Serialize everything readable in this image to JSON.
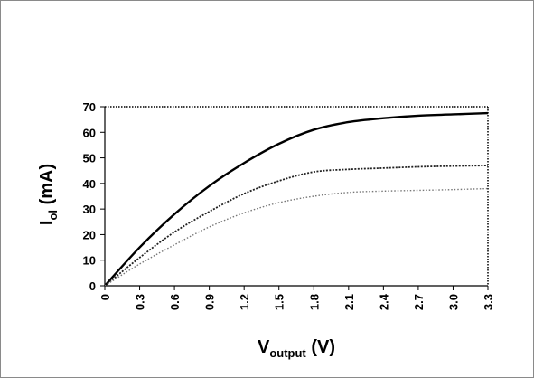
{
  "chart_data": {
    "type": "line",
    "xlabel": {
      "main": "V",
      "sub": "output",
      "unit": " (V)"
    },
    "ylabel": {
      "main": "I",
      "sub": "ol",
      "unit": " (mA)"
    },
    "xlim": [
      0,
      3.3
    ],
    "ylim": [
      0,
      70
    ],
    "x_ticks": [
      "0",
      "0.3",
      "0.6",
      "0.9",
      "1.2",
      "1.5",
      "1.8",
      "2.1",
      "2.4",
      "2.7",
      "3.0",
      "3.3"
    ],
    "y_ticks": [
      "0",
      "10",
      "20",
      "30",
      "40",
      "50",
      "60",
      "70"
    ],
    "x": [
      0,
      0.3,
      0.6,
      0.9,
      1.2,
      1.5,
      1.8,
      2.1,
      2.4,
      2.7,
      3.0,
      3.3
    ],
    "series": [
      {
        "values": [
          0,
          15,
          28,
          39,
          48,
          55.5,
          61,
          64,
          65.5,
          66.5,
          67,
          67.5
        ],
        "color": "#000000",
        "style": "solid-thick"
      },
      {
        "values": [
          0,
          11,
          21,
          29,
          36,
          41,
          44.5,
          45.5,
          46,
          46.5,
          46.8,
          47
        ],
        "color": "#222222",
        "style": "dotted-dark"
      },
      {
        "values": [
          0,
          8.5,
          16,
          23,
          28.5,
          32.5,
          35,
          36.5,
          37,
          37.3,
          37.6,
          38
        ],
        "color": "#777777",
        "style": "dotted-light"
      }
    ]
  }
}
